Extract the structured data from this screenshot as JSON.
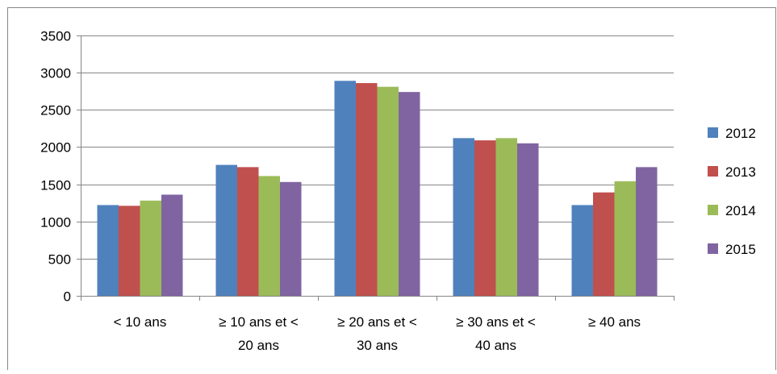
{
  "chart_data": {
    "type": "bar",
    "title": "",
    "xlabel": "",
    "ylabel": "",
    "ylim": [
      0,
      3500
    ],
    "yticks": [
      0,
      500,
      1000,
      1500,
      2000,
      2500,
      3000,
      3500
    ],
    "grid": true,
    "legend_position": "right",
    "categories": [
      [
        "< 10 ans"
      ],
      [
        "≥ 10 ans et <",
        "20 ans"
      ],
      [
        "≥ 20 ans et <",
        "30 ans"
      ],
      [
        "≥ 30 ans et <",
        "40 ans"
      ],
      [
        "≥ 40 ans"
      ]
    ],
    "series": [
      {
        "name": "2012",
        "color": "#4F81BD",
        "values": [
          1220,
          1760,
          2890,
          2120,
          1220
        ]
      },
      {
        "name": "2013",
        "color": "#C0504D",
        "values": [
          1210,
          1730,
          2860,
          2090,
          1390
        ]
      },
      {
        "name": "2014",
        "color": "#9BBB59",
        "values": [
          1280,
          1610,
          2810,
          2120,
          1540
        ]
      },
      {
        "name": "2015",
        "color": "#8064A2",
        "values": [
          1360,
          1530,
          2740,
          2050,
          1730
        ]
      }
    ]
  }
}
